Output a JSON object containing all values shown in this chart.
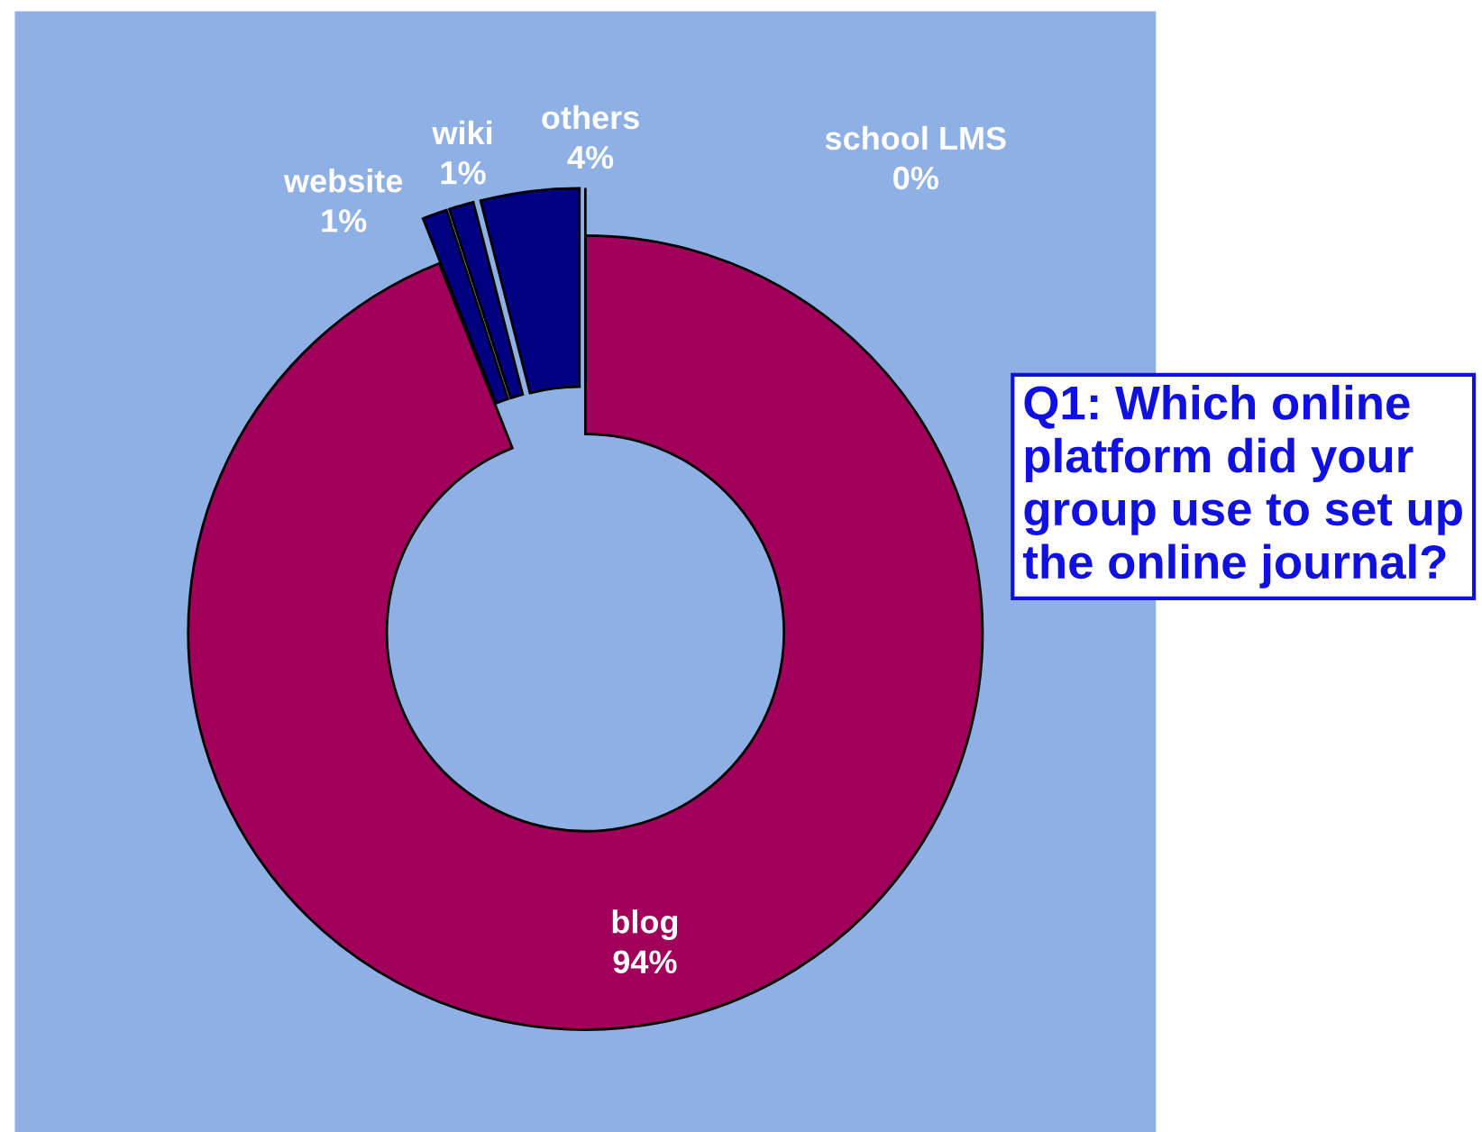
{
  "chart_data": {
    "type": "donut",
    "title": "Q1: Which online platform did your group use to set up the online journal?",
    "categories": [
      "blog",
      "website",
      "wiki",
      "others",
      "school LMS"
    ],
    "values": [
      94,
      1,
      1,
      4,
      0
    ],
    "colors": [
      "#a0005a",
      "#000080",
      "#000080",
      "#000080",
      "#000080"
    ],
    "value_labels": [
      "94%",
      "1%",
      "1%",
      "4%",
      "0%"
    ],
    "legend": false
  }
}
